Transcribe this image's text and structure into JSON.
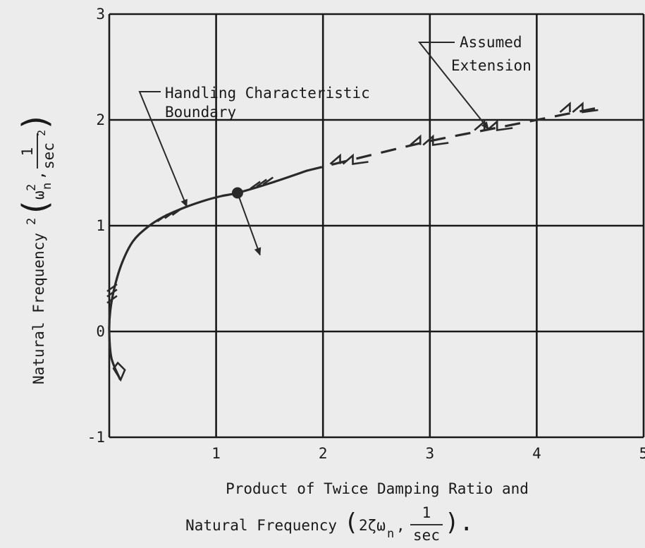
{
  "chart_data": {
    "type": "line",
    "xlim": [
      0,
      5
    ],
    "ylim": [
      -1,
      3
    ],
    "x_ticks": [
      "1",
      "2",
      "3",
      "4",
      "5"
    ],
    "y_ticks": [
      "-1",
      "0",
      "1",
      "2",
      "3"
    ],
    "grid": true,
    "xlabel_line1": "Product of Twice Damping Ratio and",
    "xlabel_line2": "Natural Frequency",
    "xlabel_units": "(2ζω",
    "xlabel_sub": "n",
    "xlabel_unit_frac": "1/sec",
    "ylabel_main": "Natural Frequency",
    "ylabel_units": "(ω",
    "ylabel_sub": "n",
    "ylabel_unit_frac": "1/sec²",
    "series": [
      {
        "name": "Handling Characteristic Boundary",
        "style": "solid",
        "x": [
          0.1,
          0.02,
          0.0,
          0.01,
          0.05,
          0.12,
          0.22,
          0.35,
          0.5,
          0.7,
          0.9,
          1.05,
          1.2,
          1.5,
          1.85
        ],
        "y": [
          -0.45,
          -0.25,
          0.0,
          0.2,
          0.42,
          0.65,
          0.85,
          0.98,
          1.08,
          1.17,
          1.24,
          1.28,
          1.31,
          1.4,
          1.52
        ]
      },
      {
        "name": "Assumed Extension",
        "style": "dashed",
        "x": [
          1.85,
          2.5,
          3.0,
          3.5,
          4.0,
          4.6
        ],
        "y": [
          1.52,
          1.68,
          1.8,
          1.9,
          2.0,
          2.12
        ]
      }
    ],
    "marked_point": {
      "x": 1.2,
      "y": 1.31
    },
    "annotations": [
      {
        "text_line1": "Handling Characteristic",
        "text_line2": "Boundary"
      },
      {
        "text_line1": "Assumed",
        "text_line2": "Extension"
      }
    ]
  }
}
